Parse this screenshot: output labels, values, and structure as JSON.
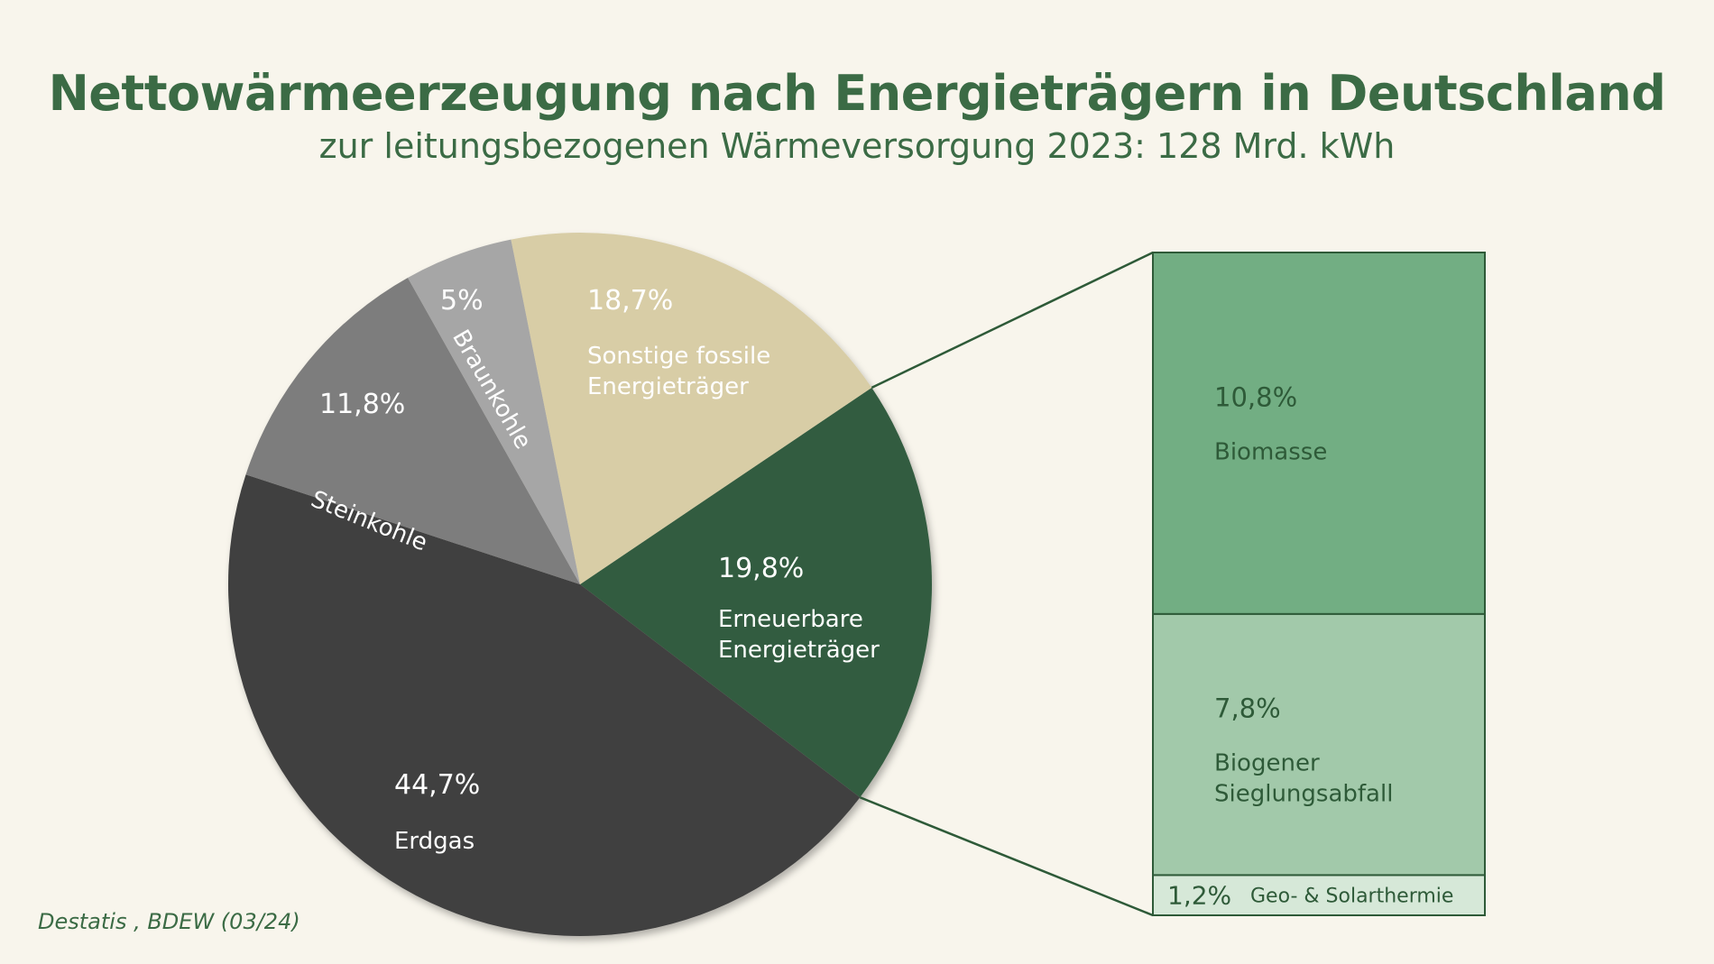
{
  "header": {
    "title": "Nettowärmeerzeugung nach Energieträgern in Deutschland",
    "subtitle": "zur leitungsbezogenen Wärmeversorgung 2023: 128 Mrd. kWh"
  },
  "source": "Destatis , BDEW (03/24)",
  "colors": {
    "background": "#f8f5ec",
    "accent": "#3b6b45",
    "erdgas": "#3f3f3f",
    "steinkohle": "#7d7d7d",
    "braunkohle": "#a6a6a6",
    "sonstige_fossile": "#d8cda6",
    "erneuerbare": "#335c3f",
    "biomasse": "#72ae83",
    "biogener_abfall": "#a2c9aa",
    "geo_solar": "#d6e8d8"
  },
  "chart_data": {
    "type": "pie",
    "title": "Nettowärmeerzeugung nach Energieträgern in Deutschland",
    "subtitle": "zur leitungsbezogenen Wärmeversorgung 2023: 128 Mrd. kWh",
    "unit": "%",
    "slices": [
      {
        "key": "erneuerbare",
        "label": "Erneuerbare Energieträger",
        "value": 19.8,
        "value_label": "19,8%",
        "color": "#335c3f"
      },
      {
        "key": "erdgas",
        "label": "Erdgas",
        "value": 44.7,
        "value_label": "44,7%",
        "color": "#3f3f3f"
      },
      {
        "key": "steinkohle",
        "label": "Steinkohle",
        "value": 11.8,
        "value_label": "11,8%",
        "color": "#7d7d7d"
      },
      {
        "key": "braunkohle",
        "label": "Braunkohle",
        "value": 5.0,
        "value_label": "5%",
        "color": "#a6a6a6"
      },
      {
        "key": "sonstige",
        "label": "Sonstige fossile Energieträger",
        "value": 18.7,
        "value_label": "18,7%",
        "color": "#d8cda6"
      }
    ],
    "breakdown": {
      "of": "Erneuerbare Energieträger",
      "items": [
        {
          "key": "biomasse",
          "label": "Biomasse",
          "value": 10.8,
          "value_label": "10,8%",
          "color": "#72ae83"
        },
        {
          "key": "biogener",
          "label": "Biogener Sieglungsabfall",
          "value": 7.8,
          "value_label": "7,8%",
          "color": "#a2c9aa"
        },
        {
          "key": "geosolar",
          "label": "Geo- & Solarthermie",
          "value": 1.2,
          "value_label": "1,2%",
          "color": "#d6e8d8"
        }
      ]
    }
  }
}
